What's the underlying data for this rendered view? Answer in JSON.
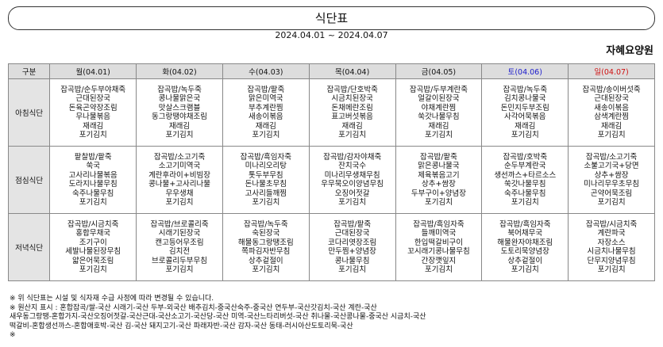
{
  "header": {
    "title": "식단표",
    "date": "2024.04.01 ~ 2024.04.07",
    "org": "자혜요양원"
  },
  "table": {
    "columns": [
      {
        "label": "구분",
        "color": "#111"
      },
      {
        "label": "월(04.01)",
        "color": "#111"
      },
      {
        "label": "화(04.02)",
        "color": "#111"
      },
      {
        "label": "수(04.03)",
        "color": "#111"
      },
      {
        "label": "목(04.04)",
        "color": "#111"
      },
      {
        "label": "금(04.05)",
        "color": "#111"
      },
      {
        "label": "토(04.06)",
        "color": "#1a1acc"
      },
      {
        "label": "일(04.07)",
        "color": "#d01010"
      }
    ],
    "rows": [
      {
        "label": "아침식단",
        "cells": [
          [
            "잡곡밥/순두부야채죽",
            "근대된장국",
            "돈육곤약장조림",
            "무나물볶음",
            "재래김",
            "포기김치"
          ],
          [
            "잡곡밥/녹두죽",
            "콩나물맑은국",
            "맛살스크램블",
            "동그랑땡야채조림",
            "재래김",
            "포기김치"
          ],
          [
            "잡곡밥/팥죽",
            "맑은미역국",
            "부추계란찜",
            "새송이볶음",
            "재래김",
            "포기김치"
          ],
          [
            "잡곡밥/단호박죽",
            "시금치된장국",
            "돈채메란조림",
            "표고버섯볶음",
            "재래김",
            "포기김치"
          ],
          [
            "잡곡밥/두부계란죽",
            "얼갈이된장국",
            "야채계란찜",
            "쑥갓나물무침",
            "재래김",
            "포기김치"
          ],
          [
            "잡곡밥/녹두죽",
            "김치콩나물국",
            "돈민지두부조림",
            "사각어묵볶음",
            "재래김",
            "포기김치"
          ],
          [
            "잡곡밥/송이버섯죽",
            "근대된장국",
            "새송이볶음",
            "삼색계란찜",
            "재래김",
            "포기김치"
          ]
        ]
      },
      {
        "label": "점심식단",
        "cells": [
          [
            "팥찰밥/팥죽",
            "쑥국",
            "고사리나물볶음",
            "도라지나물무침",
            "숙주나물무침",
            "포기김치"
          ],
          [
            "잡곡밥/소고기죽",
            "소고기미역국",
            "계란후라이+비빔장",
            "콩나물+고사리나물",
            "무우생채",
            "포기김치"
          ],
          [
            "잡곡밥/흑임자죽",
            "미나리오리탕",
            "톳두부무침",
            "돈나물초무침",
            "고사리들깨찜",
            "포기김치"
          ],
          [
            "잡곡밥/감자야채죽",
            "잔치국수",
            "미나리무생채무침",
            "우무묵오이양념무침",
            "오징어젓갈",
            "포기김치"
          ],
          [
            "잡곡밥/팥죽",
            "맑은콩나물국",
            "제육볶음고기",
            "상추+쌈장",
            "두부구이+양념장",
            "포기김치"
          ],
          [
            "잡곡밥/호박죽",
            "순두부계란국",
            "생선까스+타르소스",
            "쑥갓나물무침",
            "숙주나물무침",
            "포기김치"
          ],
          [
            "잡곡밥/소고기죽",
            "소불고기국+당면",
            "상추+쌈장",
            "미나리무우초무침",
            "곤약어묵조림",
            "포기김치"
          ]
        ]
      },
      {
        "label": "저녁식단",
        "cells": [
          [
            "잡곡밥/시금치죽",
            "홍합무채국",
            "조기구이",
            "세발나물된장무침",
            "얇은어묵조림",
            "포기김치"
          ],
          [
            "잡곡밥/브로콜리죽",
            "시래기된장국",
            "캔고등어무조림",
            "김치전",
            "브로콜리두부무침",
            "포기김치"
          ],
          [
            "잡곡밥/녹두죽",
            "숙된장국",
            "해물동그랑땡조림",
            "쪽파김자반무침",
            "상추겉절이",
            "포기김치"
          ],
          [
            "잡곡밥/팥죽",
            "근대된장국",
            "코다리엿장조림",
            "만두찜+양념장",
            "콩나물무침",
            "포기김치"
          ],
          [
            "잡곡밥/흑임자죽",
            "들깨미역국",
            "한입떡갈비구이",
            "꼬시래기콩나물무침",
            "간장깻잎지",
            "포기김치"
          ],
          [
            "잡곡밥/흑임자죽",
            "북어채무국",
            "해물완자야채조림",
            "도토리묵양념장",
            "상추겉절이",
            "포기김치"
          ],
          [
            "잡곡밥/시금치죽",
            "계란파국",
            "자장소스",
            "시금치나물무침",
            "단무지양념무침",
            "포기김치"
          ]
        ]
      }
    ]
  },
  "notes": [
    "※ 위 식단표는 시설 및 식자재 수급 사정에 따라 변경될 수 있습니다.",
    "※ 원산지 표시 : 혼합잡곡/쌀-국산 시래기-국산 두부-외국산 배추김치-중국산숙주-중국산 연두부-국산갓김치-국산 계란-국산",
    "새우동그랑땡-혼합가지-국산오징어젓갈-국산근대-국산소고기-국산당-국산 미역-국산느타리버섯-국산 취나물-국산콩나물-중국산 시금치-국산",
    "떡갈비-혼합생선까스-혼합애호박-국산 김-국산 돼지고기-국산 파래자반-국산 감자-국산 동태-러시아산도토리묵-국산",
    "※"
  ]
}
